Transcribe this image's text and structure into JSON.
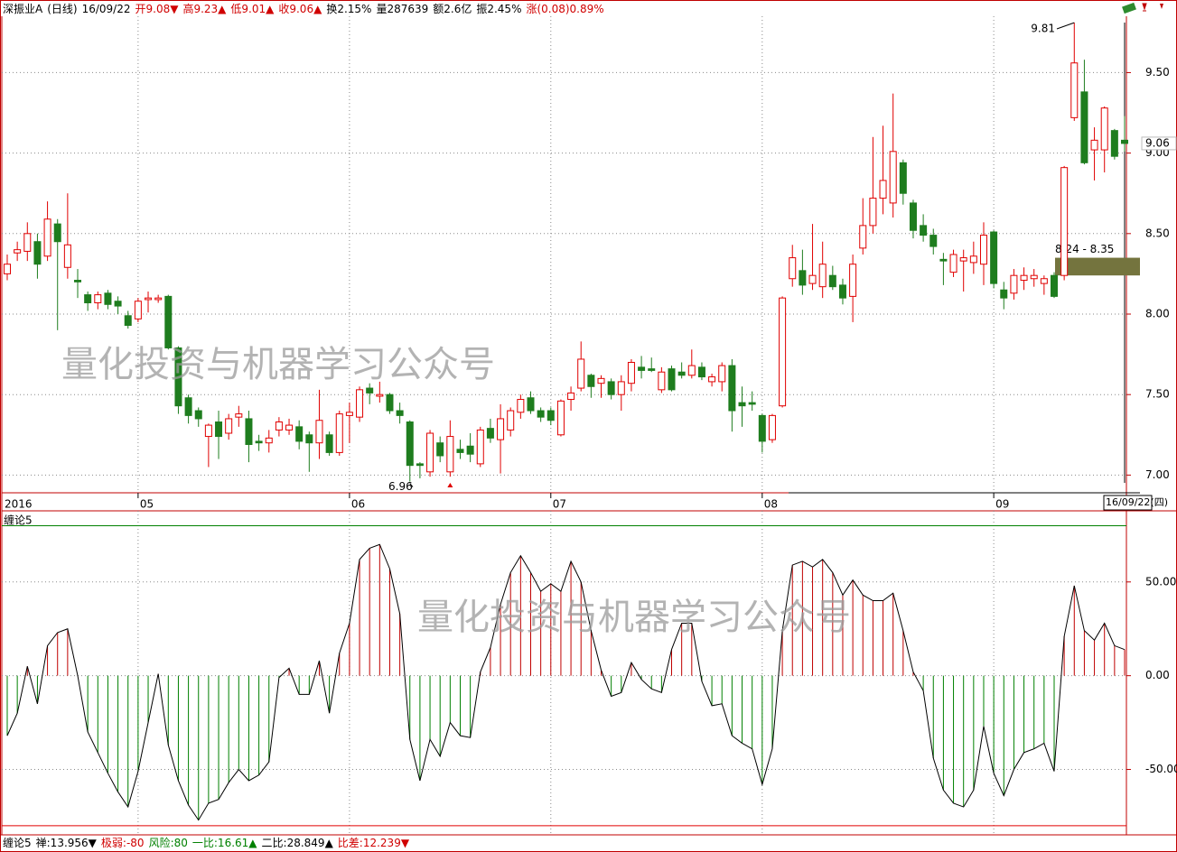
{
  "header": {
    "items": [
      {
        "text": "深振业A",
        "color": "#000000"
      },
      {
        "text": "(日线)",
        "color": "#000000"
      },
      {
        "text": "16/09/22",
        "color": "#000000"
      },
      {
        "text": "开9.08▼",
        "color": "#d00000"
      },
      {
        "text": "高9.23▲",
        "color": "#d00000"
      },
      {
        "text": "低9.01▲",
        "color": "#d00000"
      },
      {
        "text": "收9.06▲",
        "color": "#d00000"
      },
      {
        "text": "换2.15%",
        "color": "#000000"
      },
      {
        "text": "量287639",
        "color": "#000000"
      },
      {
        "text": "额2.6亿",
        "color": "#000000"
      },
      {
        "text": "振2.45%",
        "color": "#000000"
      },
      {
        "text": "涨(0.08)0.89%",
        "color": "#d00000"
      }
    ]
  },
  "watermarks": [
    "量化投资与机器学习公众号",
    "量化投资与机器学习公众号"
  ],
  "status_bar": {
    "items": [
      {
        "text": "缠论5",
        "color": "#000000"
      },
      {
        "text": "禅:13.956▼",
        "color": "#000000"
      },
      {
        "text": "极弱:-80",
        "color": "#d00000"
      },
      {
        "text": "风险:80",
        "color": "#008000"
      },
      {
        "text": "一比:16.61▲",
        "color": "#008000"
      },
      {
        "text": "二比:28.849▲",
        "color": "#000000"
      },
      {
        "text": "比差:12.239▼",
        "color": "#d00000"
      }
    ]
  },
  "chart_data": [
    {
      "type": "candlestick",
      "categories": [
        "2016",
        null,
        null,
        null,
        null,
        null,
        null,
        null,
        null,
        null,
        null,
        null,
        null,
        "05",
        null,
        null,
        null,
        null,
        null,
        null,
        null,
        null,
        null,
        null,
        null,
        null,
        null,
        null,
        null,
        null,
        null,
        null,
        null,
        null,
        "06",
        null,
        null,
        null,
        null,
        null,
        null,
        null,
        null,
        null,
        null,
        null,
        null,
        null,
        null,
        null,
        null,
        null,
        null,
        null,
        "07",
        null,
        null,
        null,
        null,
        null,
        null,
        null,
        null,
        null,
        null,
        null,
        null,
        null,
        null,
        null,
        null,
        null,
        null,
        null,
        null,
        "08",
        null,
        null,
        null,
        null,
        null,
        null,
        null,
        null,
        null,
        null,
        null,
        null,
        null,
        null,
        null,
        null,
        null,
        null,
        null,
        null,
        null,
        null,
        "09",
        null,
        null,
        null,
        null,
        null,
        null,
        null,
        null,
        null,
        null,
        null,
        null,
        null
      ],
      "cursor_date": "16/09/22(四)",
      "open": [
        8.25,
        8.38,
        8.39,
        8.45,
        8.36,
        8.56,
        8.29,
        8.21,
        8.12,
        8.07,
        8.13,
        8.08,
        7.99,
        7.97,
        8.09,
        8.09,
        8.11,
        7.79,
        7.48,
        7.4,
        7.24,
        7.33,
        7.26,
        7.36,
        7.35,
        7.21,
        7.2,
        7.28,
        7.28,
        7.3,
        7.25,
        7.2,
        7.25,
        7.14,
        7.37,
        7.36,
        7.54,
        7.49,
        7.5,
        7.4,
        7.33,
        7.07,
        7.02,
        7.2,
        7.02,
        7.16,
        7.18,
        7.07,
        7.29,
        7.22,
        7.28,
        7.39,
        7.48,
        7.4,
        7.4,
        7.25,
        7.47,
        7.54,
        7.62,
        7.57,
        7.58,
        7.5,
        7.57,
        7.67,
        7.66,
        7.53,
        7.66,
        7.64,
        7.62,
        7.67,
        7.58,
        7.58,
        7.68,
        7.45,
        7.45,
        7.37,
        7.22,
        7.43,
        8.22,
        8.27,
        8.19,
        8.17,
        8.24,
        8.18,
        8.11,
        8.41,
        8.55,
        8.72,
        8.69,
        8.94,
        8.69,
        8.55,
        8.49,
        8.34,
        8.26,
        8.33,
        8.32,
        8.31,
        8.51,
        8.15,
        8.13,
        8.21,
        8.22,
        8.19,
        8.24,
        8.24,
        9.22,
        9.38,
        9.02,
        9.02,
        9.14,
        9.08
      ],
      "high": [
        8.37,
        8.45,
        8.57,
        8.5,
        8.7,
        8.59,
        8.75,
        8.28,
        8.14,
        8.14,
        8.15,
        8.11,
        8.02,
        8.1,
        8.14,
        8.12,
        8.12,
        7.8,
        7.5,
        7.42,
        7.32,
        7.4,
        7.38,
        7.43,
        7.4,
        7.25,
        7.28,
        7.36,
        7.35,
        7.34,
        7.27,
        7.53,
        7.27,
        7.4,
        7.45,
        7.55,
        7.57,
        7.58,
        7.51,
        7.45,
        7.34,
        7.08,
        7.28,
        7.24,
        7.34,
        7.22,
        7.26,
        7.3,
        7.35,
        7.44,
        7.42,
        7.5,
        7.52,
        7.42,
        7.42,
        7.47,
        7.55,
        7.83,
        7.63,
        7.62,
        7.6,
        7.62,
        7.72,
        7.74,
        7.73,
        7.67,
        7.68,
        7.7,
        7.78,
        7.7,
        7.63,
        7.7,
        7.72,
        7.55,
        7.52,
        7.38,
        7.38,
        8.11,
        8.43,
        8.4,
        8.56,
        8.45,
        8.3,
        8.22,
        8.37,
        8.72,
        9.1,
        9.17,
        9.37,
        8.96,
        8.71,
        8.62,
        8.53,
        8.38,
        8.4,
        8.4,
        8.45,
        8.57,
        8.52,
        8.2,
        8.28,
        8.29,
        8.28,
        8.24,
        8.26,
        8.92,
        9.81,
        9.58,
        9.16,
        9.29,
        9.15,
        9.23
      ],
      "low": [
        8.21,
        8.33,
        8.33,
        8.22,
        8.33,
        7.9,
        8.22,
        8.1,
        8.02,
        8.03,
        8.03,
        8.0,
        7.91,
        7.95,
        8.01,
        8.07,
        7.78,
        7.38,
        7.32,
        7.3,
        7.05,
        7.1,
        7.22,
        7.3,
        7.08,
        7.15,
        7.14,
        7.24,
        7.25,
        7.16,
        7.02,
        7.1,
        7.12,
        7.12,
        7.2,
        7.33,
        7.44,
        7.45,
        7.38,
        7.32,
        6.96,
        6.98,
        6.99,
        7.08,
        6.99,
        7.1,
        7.08,
        7.05,
        7.2,
        7.01,
        7.24,
        7.35,
        7.38,
        7.33,
        7.31,
        7.24,
        7.4,
        7.52,
        7.48,
        7.48,
        7.47,
        7.4,
        7.52,
        7.6,
        7.64,
        7.51,
        7.52,
        7.6,
        7.6,
        7.59,
        7.55,
        7.52,
        7.27,
        7.3,
        7.4,
        7.14,
        7.2,
        7.42,
        8.17,
        8.12,
        8.15,
        8.1,
        8.15,
        8.06,
        7.95,
        8.37,
        8.5,
        8.62,
        8.6,
        8.68,
        8.47,
        8.45,
        8.37,
        8.18,
        8.23,
        8.14,
        8.25,
        8.18,
        8.16,
        8.03,
        8.09,
        8.15,
        8.17,
        8.12,
        8.1,
        8.21,
        9.2,
        8.93,
        8.83,
        8.88,
        8.96,
        9.01
      ],
      "close": [
        8.31,
        8.4,
        8.5,
        8.31,
        8.59,
        8.45,
        8.43,
        8.2,
        8.07,
        8.12,
        8.06,
        8.05,
        7.93,
        8.08,
        8.1,
        8.1,
        7.79,
        7.43,
        7.37,
        7.35,
        7.31,
        7.24,
        7.35,
        7.38,
        7.19,
        7.2,
        7.23,
        7.33,
        7.31,
        7.21,
        7.2,
        7.34,
        7.14,
        7.38,
        7.39,
        7.53,
        7.51,
        7.5,
        7.4,
        7.37,
        7.06,
        7.06,
        7.26,
        7.12,
        7.24,
        7.14,
        7.13,
        7.28,
        7.23,
        7.35,
        7.4,
        7.47,
        7.4,
        7.36,
        7.34,
        7.46,
        7.51,
        7.72,
        7.55,
        7.6,
        7.5,
        7.58,
        7.7,
        7.65,
        7.65,
        7.64,
        7.53,
        7.62,
        7.68,
        7.61,
        7.61,
        7.68,
        7.4,
        7.43,
        7.44,
        7.21,
        7.37,
        8.1,
        8.35,
        8.18,
        8.24,
        8.31,
        8.17,
        8.1,
        8.31,
        8.55,
        8.72,
        8.83,
        9.01,
        8.75,
        8.52,
        8.49,
        8.42,
        8.33,
        8.37,
        8.35,
        8.36,
        8.49,
        8.19,
        8.1,
        8.24,
        8.24,
        8.24,
        8.22,
        8.11,
        8.91,
        9.56,
        8.94,
        9.08,
        9.28,
        8.98,
        9.06
      ],
      "up_color": "#e00000",
      "down_color": "#1e7d1e",
      "ylim": [
        6.89,
        9.85
      ],
      "yticks": [
        {
          "value": 7,
          "label": "7.00"
        },
        {
          "value": 7.5,
          "label": "7.50"
        },
        {
          "value": 8,
          "label": "8.00"
        },
        {
          "value": 8.5,
          "label": "8.50"
        },
        {
          "value": 9,
          "label": "9.00"
        },
        {
          "value": 9.5,
          "label": "9.50"
        }
      ],
      "grid": true,
      "high_label": 9.81,
      "low_label": 6.96,
      "zone": {
        "low": 8.24,
        "high": 8.35,
        "label": "8.24 - 8.35",
        "color": "#74743e"
      },
      "last_price": 9.06
    },
    {
      "type": "line",
      "title": "缠论5",
      "values": [
        -32,
        -20,
        5,
        -15,
        16,
        23,
        25,
        0,
        -30,
        -41,
        -52,
        -62,
        -70,
        -51,
        -25,
        1,
        -37,
        -56,
        -69,
        -77,
        -68,
        -66,
        -57,
        -50,
        -56,
        -53,
        -46,
        -1,
        4,
        -10,
        -10,
        8,
        -20,
        12,
        28,
        62,
        68,
        70,
        57,
        33,
        -34,
        -56,
        -34,
        -43,
        -25,
        -32,
        -33,
        2,
        15,
        38,
        55,
        64,
        55,
        45,
        49,
        45,
        61,
        50,
        24,
        3,
        -11,
        -9,
        7,
        -2,
        -7,
        -9,
        14,
        28,
        28,
        -3,
        -16,
        -15,
        -32,
        -36,
        -39,
        -58,
        -39,
        24,
        59,
        61,
        58,
        62,
        55,
        43,
        51,
        43,
        40,
        40,
        44,
        24,
        2,
        -8,
        -44,
        -61,
        -68,
        -70,
        -61,
        -27,
        -52,
        -64,
        -50,
        -41,
        -39,
        -36,
        -51,
        21,
        48,
        24,
        19,
        28,
        16,
        13.956
      ],
      "color": "#000000",
      "up_color": "#c00000",
      "down_color": "#008000",
      "ylim": [
        -82,
        86
      ],
      "yticks": [
        {
          "value": 50,
          "label": "50.00"
        },
        {
          "value": 0,
          "label": "0.00"
        },
        {
          "value": -50,
          "label": "-50.00"
        }
      ],
      "reference_lines": [
        {
          "value": 80,
          "color": "#008000"
        },
        {
          "value": -80,
          "color": "#e00000"
        }
      ],
      "grid": true
    }
  ]
}
